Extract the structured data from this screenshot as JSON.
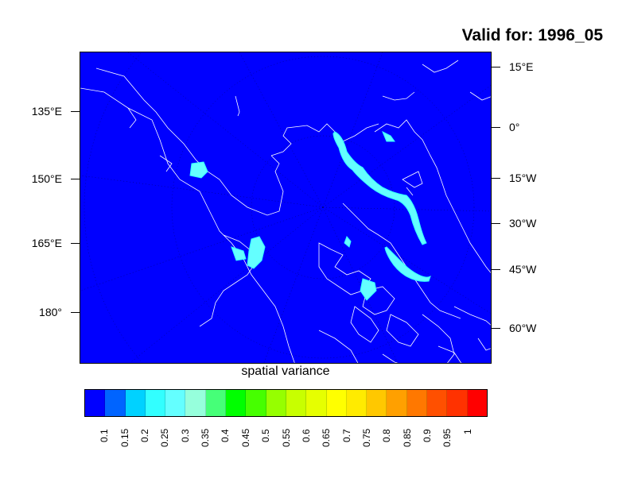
{
  "title": "Valid for: 1996_05",
  "xlabel": "spatial variance",
  "left_axis_labels": [
    "135°E",
    "150°E",
    "165°E",
    "180°"
  ],
  "right_axis_labels": [
    "15°E",
    "0°",
    "15°W",
    "30°W",
    "45°W",
    "60°W"
  ],
  "colorbar": {
    "colors": [
      "#0000ff",
      "#0064ff",
      "#00d2ff",
      "#32ffff",
      "#64ffff",
      "#96ffdc",
      "#46ff78",
      "#00ff00",
      "#46ff00",
      "#96ff00",
      "#c8ff00",
      "#e6ff00",
      "#ffff00",
      "#ffeb00",
      "#ffc800",
      "#ffa000",
      "#ff7800",
      "#ff5000",
      "#ff3200",
      "#ff0000"
    ],
    "labels": [
      "0.1",
      "0.15",
      "0.2",
      "0.25",
      "0.3",
      "0.35",
      "0.4",
      "0.45",
      "0.5",
      "0.55",
      "0.6",
      "0.65",
      "0.7",
      "0.75",
      "0.8",
      "0.85",
      "0.9",
      "0.95",
      "1"
    ]
  },
  "map": {
    "background_color": "#0000ff",
    "highlight_color": "#64ffff",
    "coastline_color": "#ffffff"
  }
}
